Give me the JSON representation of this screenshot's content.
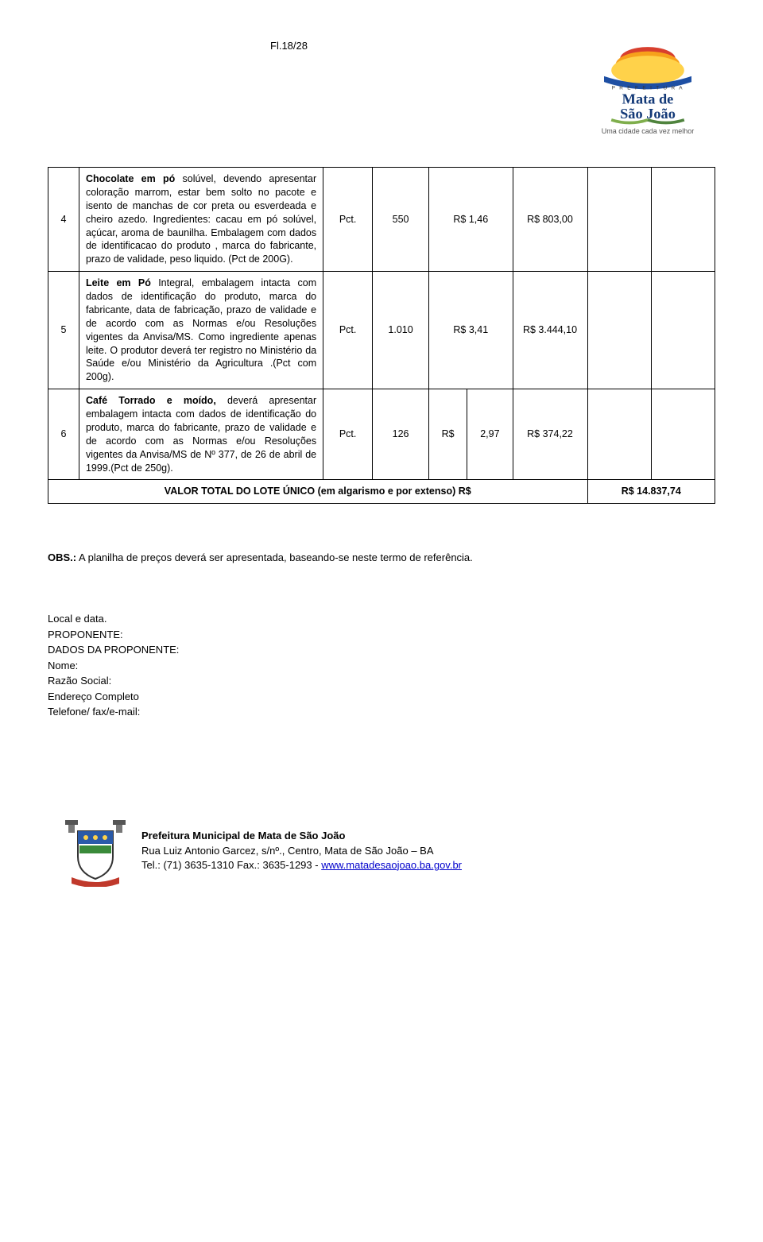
{
  "page_label": "Fl.18/28",
  "logo": {
    "top_text": "P R E F E I T U R A",
    "name_line1": "Mata de",
    "name_line2": "São João",
    "tagline": "Uma cidade cada vez melhor",
    "colors": {
      "red": "#d83f2e",
      "orange": "#f7a11b",
      "yellow": "#ffd24a",
      "blue": "#1e4fa3",
      "dark_blue": "#143a78",
      "green1": "#7fae4c",
      "green2": "#4f833d"
    }
  },
  "rows": [
    {
      "idx": "4",
      "desc": "Chocolate em pó solúvel, devendo apresentar coloração marrom, estar bem solto no pacote e isento de manchas de cor preta ou esverdeada e cheiro azedo. Ingredientes: cacau em pó solúvel, açúcar, aroma de baunilha. Embalagem com dados de identificacao do produto , marca do fabricante, prazo de validade, peso liquido. (Pct de 200G).",
      "bold_prefix": "Chocolate em pó",
      "unit": "Pct.",
      "qty": "550",
      "unit_price": "R$ 1,46",
      "total_price": "R$ 803,00"
    },
    {
      "idx": "5",
      "desc": "Leite em Pó Integral, embalagem intacta com dados de identificação do produto, marca do fabricante, data de fabricação, prazo de validade e de acordo com as Normas e/ou Resoluções vigentes da Anvisa/MS. Como ingrediente apenas leite. O produtor deverá ter registro no Ministério da Saúde e/ou Ministério da Agricultura .(Pct com 200g).",
      "bold_prefix": "Leite em Pó",
      "unit": "Pct.",
      "qty": "1.010",
      "unit_price": "R$ 3,41",
      "total_price": "R$ 3.444,10"
    },
    {
      "idx": "6",
      "desc": "Café Torrado e moído, deverá apresentar embalagem intacta com dados de identificação do produto, marca do fabricante, prazo de validade e de acordo com as Normas e/ou Resoluções vigentes da Anvisa/MS de Nº 377, de 26 de abril de 1999.(Pct de 250g).",
      "bold_prefix": "Café Torrado e moído,",
      "unit": "Pct.",
      "qty": "126",
      "unit_price_parts": [
        "R$",
        "2,97"
      ],
      "total_price": "R$ 374,22"
    }
  ],
  "total_label": "VALOR TOTAL DO LOTE ÚNICO (em algarismo e por extenso) R$",
  "total_value": "R$ 14.837,74",
  "obs_label": "OBS.:",
  "obs_text": " A planilha de preços deverá ser apresentada, baseando-se neste termo de referência.",
  "proponent": {
    "l1": "Local e data.",
    "l2": "PROPONENTE:",
    "l3": "DADOS DA PROPONENTE:",
    "l4": "Nome:",
    "l5": "Razão Social:",
    "l6": "Endereço Completo",
    "l7": "Telefone/ fax/e-mail:"
  },
  "footer": {
    "org": "Prefeitura Municipal de Mata de São João",
    "addr": "Rua Luiz Antonio Garcez, s/nº., Centro, Mata de São João – BA",
    "tel_prefix": "Tel.: (71) 3635-1310 Fax.: 3635-1293 - ",
    "url": "www.matadesaojoao.ba.gov.br"
  }
}
